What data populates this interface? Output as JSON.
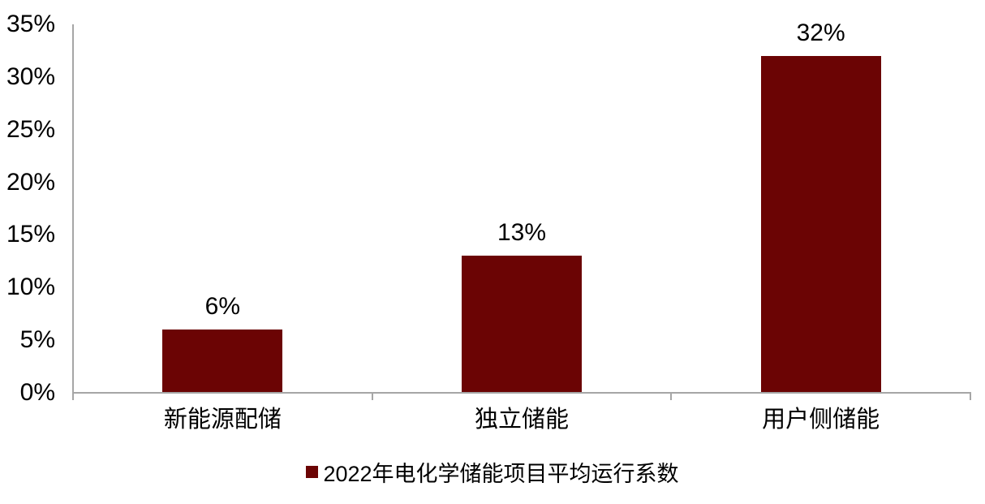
{
  "chart_data": {
    "type": "bar",
    "title": "",
    "categories": [
      "新能源配储",
      "独立储能",
      "用户侧储能"
    ],
    "series": [
      {
        "name": "2022年电化学储能项目平均运行系数",
        "values": [
          6,
          13,
          32
        ]
      }
    ],
    "value_labels": [
      "6%",
      "13%",
      "32%"
    ],
    "xlabel": "",
    "ylabel": "",
    "y_axis": {
      "min": 0,
      "max": 35,
      "step": 5,
      "tick_labels": [
        "0%",
        "5%",
        "10%",
        "15%",
        "20%",
        "25%",
        "30%",
        "35%"
      ]
    },
    "grid": false,
    "legend_position": "bottom",
    "colors": {
      "bar": "#6b0404",
      "axis": "#a6a6a6",
      "text": "#000000",
      "background": "#ffffff"
    }
  },
  "legend": {
    "label": "2022年电化学储能项目平均运行系数",
    "marker_color": "#6b0404"
  }
}
